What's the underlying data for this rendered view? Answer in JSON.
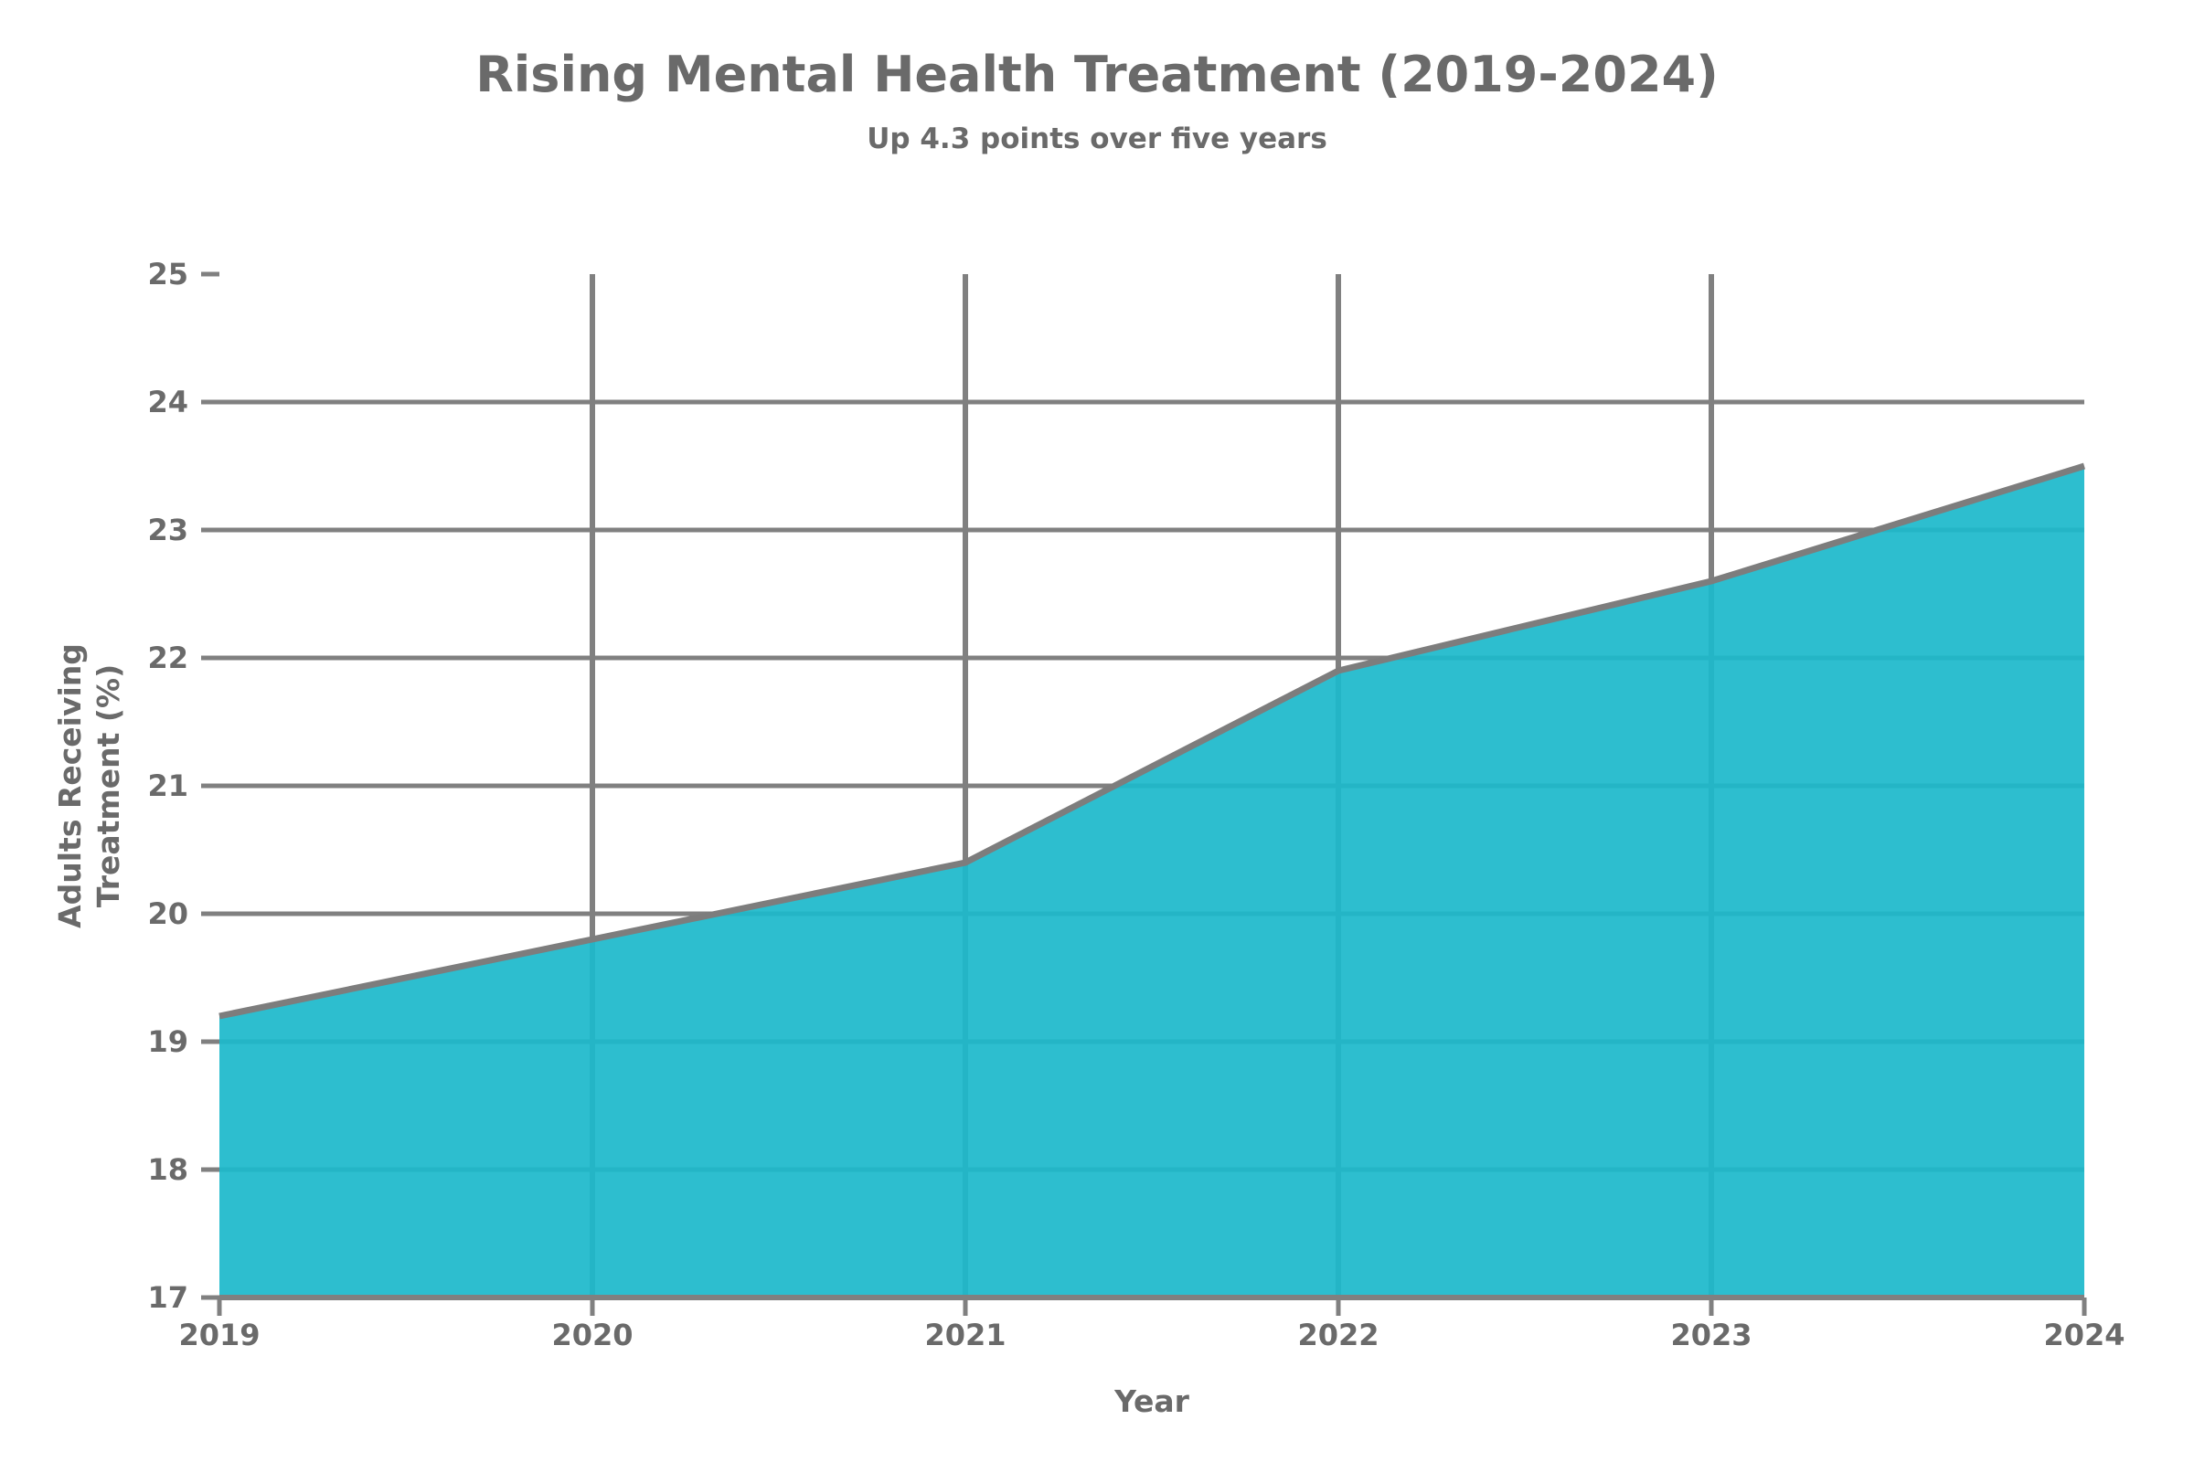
{
  "figure": {
    "title": "Rising Mental Health Treatment (2019-2024)",
    "subtitle": "Up 4.3 points over five years"
  },
  "chart_data": {
    "type": "area",
    "title": "Rising Mental Health Treatment (2019-2024)",
    "subtitle": "Up 4.3 points over five years",
    "xlabel": "Year",
    "ylabel_line1": "Adults Receiving",
    "ylabel_line2": "Treatment (%)",
    "x": [
      2019,
      2020,
      2021,
      2022,
      2023,
      2024
    ],
    "values": [
      19.2,
      19.8,
      20.4,
      21.9,
      22.6,
      23.5
    ],
    "xticks": [
      "2019",
      "2020",
      "2021",
      "2022",
      "2023",
      "2024"
    ],
    "yticks": [
      17,
      18,
      19,
      20,
      21,
      22,
      23,
      24,
      25
    ],
    "ylim": [
      17,
      25
    ],
    "xlim": [
      2019,
      2024
    ],
    "grid": true,
    "legend_position": "none",
    "colors": {
      "fill": "#1db9cb",
      "line": "#7d7d7d",
      "grid": "#808080",
      "axis": "#808080",
      "text": "#6a6a6a",
      "background": "#ffffff"
    }
  }
}
